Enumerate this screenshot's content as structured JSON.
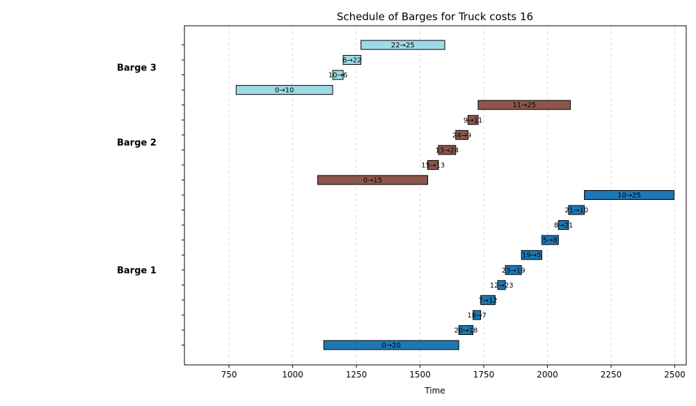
{
  "chart_data": {
    "type": "gantt",
    "title": "Schedule of Barges for Truck costs 16",
    "xlabel": "Time",
    "ylabel": "",
    "xlim": [
      575,
      2545
    ],
    "xticks": [
      750,
      1000,
      1250,
      1500,
      1750,
      2000,
      2250,
      2500
    ],
    "grid": "x-dashed",
    "colors": {
      "Barge 1": "#1f77b4",
      "Barge 2": "#8c564b",
      "Barge 3": "#9edae5"
    },
    "groups": [
      {
        "name": "Barge 1",
        "tasks": [
          {
            "label": "0→20",
            "start": 1122,
            "end": 1652
          },
          {
            "label": "20→18",
            "start": 1652,
            "end": 1708
          },
          {
            "label": "18→7",
            "start": 1708,
            "end": 1738
          },
          {
            "label": "7→12",
            "start": 1738,
            "end": 1795
          },
          {
            "label": "12→23",
            "start": 1805,
            "end": 1835
          },
          {
            "label": "23→19",
            "start": 1835,
            "end": 1898
          },
          {
            "label": "19→5",
            "start": 1898,
            "end": 1978
          },
          {
            "label": "5→8",
            "start": 1978,
            "end": 2043
          },
          {
            "label": "8→21",
            "start": 2043,
            "end": 2083
          },
          {
            "label": "21→10",
            "start": 2083,
            "end": 2145
          },
          {
            "label": "10→25",
            "start": 2145,
            "end": 2497
          }
        ]
      },
      {
        "name": "Barge 2",
        "tasks": [
          {
            "label": "0→15",
            "start": 1098,
            "end": 1530
          },
          {
            "label": "15→13",
            "start": 1530,
            "end": 1572
          },
          {
            "label": "13→24",
            "start": 1572,
            "end": 1640
          },
          {
            "label": "24→9",
            "start": 1640,
            "end": 1688
          },
          {
            "label": "9→11",
            "start": 1688,
            "end": 1728
          },
          {
            "label": "11→25",
            "start": 1728,
            "end": 2090
          }
        ]
      },
      {
        "name": "Barge 3",
        "tasks": [
          {
            "label": "0→10",
            "start": 778,
            "end": 1157
          },
          {
            "label": "10→6",
            "start": 1157,
            "end": 1198
          },
          {
            "label": "6→22",
            "start": 1198,
            "end": 1268
          },
          {
            "label": "22→25",
            "start": 1268,
            "end": 1597
          }
        ]
      }
    ]
  }
}
